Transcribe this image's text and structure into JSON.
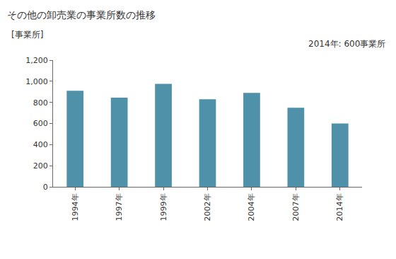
{
  "chart_data": {
    "type": "bar",
    "title": "その他の卸売業の事業所数の推移",
    "y_label": "[事業所]",
    "annotation": "2014年: 600事業所",
    "categories": [
      "1994年",
      "1997年",
      "1999年",
      "2002年",
      "2004年",
      "2007年",
      "2014年"
    ],
    "values": [
      910,
      845,
      975,
      830,
      890,
      750,
      600
    ],
    "color": "#4e91a9",
    "ylim": [
      0,
      1200
    ],
    "yticks": [
      0,
      200,
      400,
      600,
      800,
      {
        "value": 1000,
        "label": "1,000"
      },
      {
        "value": 1200,
        "label": "1,200"
      }
    ],
    "grid": false
  }
}
